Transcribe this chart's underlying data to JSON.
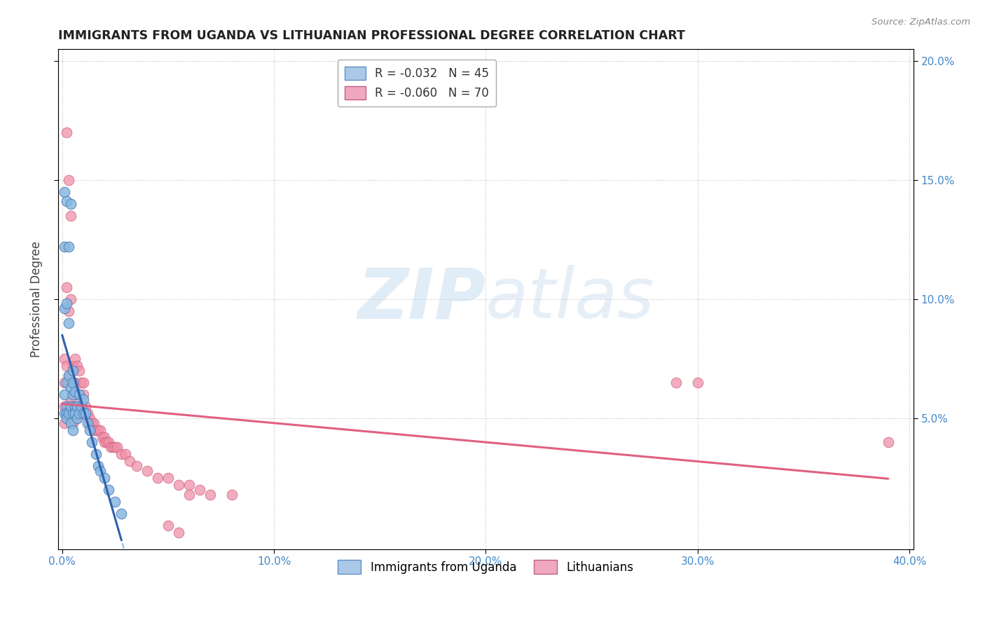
{
  "title": "IMMIGRANTS FROM UGANDA VS LITHUANIAN PROFESSIONAL DEGREE CORRELATION CHART",
  "source": "Source: ZipAtlas.com",
  "ylabel": "Professional Degree",
  "xlim": [
    -0.002,
    0.402
  ],
  "ylim": [
    -0.005,
    0.205
  ],
  "xticks": [
    0.0,
    0.1,
    0.2,
    0.3,
    0.4
  ],
  "xticklabels": [
    "0.0%",
    "10.0%",
    "20.0%",
    "30.0%",
    "40.0%"
  ],
  "yticks_right": [
    0.05,
    0.1,
    0.15,
    0.2
  ],
  "yticklabels_right": [
    "5.0%",
    "10.0%",
    "15.0%",
    "20.0%"
  ],
  "legend1_label": "R = -0.032   N = 45",
  "legend2_label": "R = -0.060   N = 70",
  "legend1_color": "#aac8e8",
  "legend2_color": "#f0a8c0",
  "blue_scatter_color": "#88b8e0",
  "pink_scatter_color": "#f090a8",
  "blue_line_color": "#3060b0",
  "pink_line_color": "#e06080",
  "blue_dash_color": "#90b8d8",
  "watermark_zip": "ZIP",
  "watermark_atlas": "atlas",
  "background_color": "#ffffff",
  "grid_color": "#cccccc",
  "Uganda_x": [
    0.001,
    0.001,
    0.001,
    0.001,
    0.001,
    0.002,
    0.002,
    0.002,
    0.002,
    0.002,
    0.002,
    0.003,
    0.003,
    0.003,
    0.003,
    0.004,
    0.004,
    0.004,
    0.004,
    0.005,
    0.005,
    0.005,
    0.005,
    0.005,
    0.006,
    0.006,
    0.006,
    0.007,
    0.007,
    0.008,
    0.008,
    0.009,
    0.01,
    0.01,
    0.011,
    0.012,
    0.013,
    0.014,
    0.016,
    0.017,
    0.018,
    0.02,
    0.022,
    0.025,
    0.028
  ],
  "Uganda_y": [
    0.145,
    0.122,
    0.096,
    0.06,
    0.052,
    0.141,
    0.098,
    0.065,
    0.055,
    0.052,
    0.05,
    0.122,
    0.09,
    0.068,
    0.052,
    0.14,
    0.063,
    0.055,
    0.048,
    0.07,
    0.065,
    0.06,
    0.052,
    0.045,
    0.061,
    0.055,
    0.052,
    0.055,
    0.05,
    0.06,
    0.052,
    0.055,
    0.058,
    0.052,
    0.052,
    0.048,
    0.045,
    0.04,
    0.035,
    0.03,
    0.028,
    0.025,
    0.02,
    0.015,
    0.01
  ],
  "Lithuania_x": [
    0.001,
    0.001,
    0.001,
    0.001,
    0.002,
    0.002,
    0.002,
    0.002,
    0.003,
    0.003,
    0.003,
    0.003,
    0.004,
    0.004,
    0.004,
    0.005,
    0.005,
    0.005,
    0.005,
    0.006,
    0.006,
    0.006,
    0.007,
    0.007,
    0.007,
    0.008,
    0.008,
    0.008,
    0.009,
    0.009,
    0.01,
    0.01,
    0.01,
    0.011,
    0.012,
    0.013,
    0.013,
    0.014,
    0.015,
    0.015,
    0.016,
    0.017,
    0.018,
    0.019,
    0.02,
    0.02,
    0.021,
    0.022,
    0.023,
    0.024,
    0.025,
    0.026,
    0.028,
    0.03,
    0.032,
    0.035,
    0.04,
    0.045,
    0.05,
    0.055,
    0.06,
    0.065,
    0.07,
    0.08,
    0.29,
    0.3,
    0.39,
    0.05,
    0.055,
    0.06
  ],
  "Lithuania_y": [
    0.075,
    0.065,
    0.055,
    0.048,
    0.17,
    0.105,
    0.072,
    0.052,
    0.15,
    0.095,
    0.068,
    0.055,
    0.135,
    0.1,
    0.058,
    0.072,
    0.065,
    0.055,
    0.048,
    0.075,
    0.065,
    0.052,
    0.072,
    0.06,
    0.05,
    0.07,
    0.06,
    0.052,
    0.065,
    0.055,
    0.065,
    0.06,
    0.052,
    0.055,
    0.052,
    0.05,
    0.048,
    0.048,
    0.048,
    0.045,
    0.045,
    0.045,
    0.045,
    0.042,
    0.042,
    0.04,
    0.04,
    0.04,
    0.038,
    0.038,
    0.038,
    0.038,
    0.035,
    0.035,
    0.032,
    0.03,
    0.028,
    0.025,
    0.025,
    0.022,
    0.022,
    0.02,
    0.018,
    0.018,
    0.065,
    0.065,
    0.04,
    0.005,
    0.002,
    0.018
  ]
}
